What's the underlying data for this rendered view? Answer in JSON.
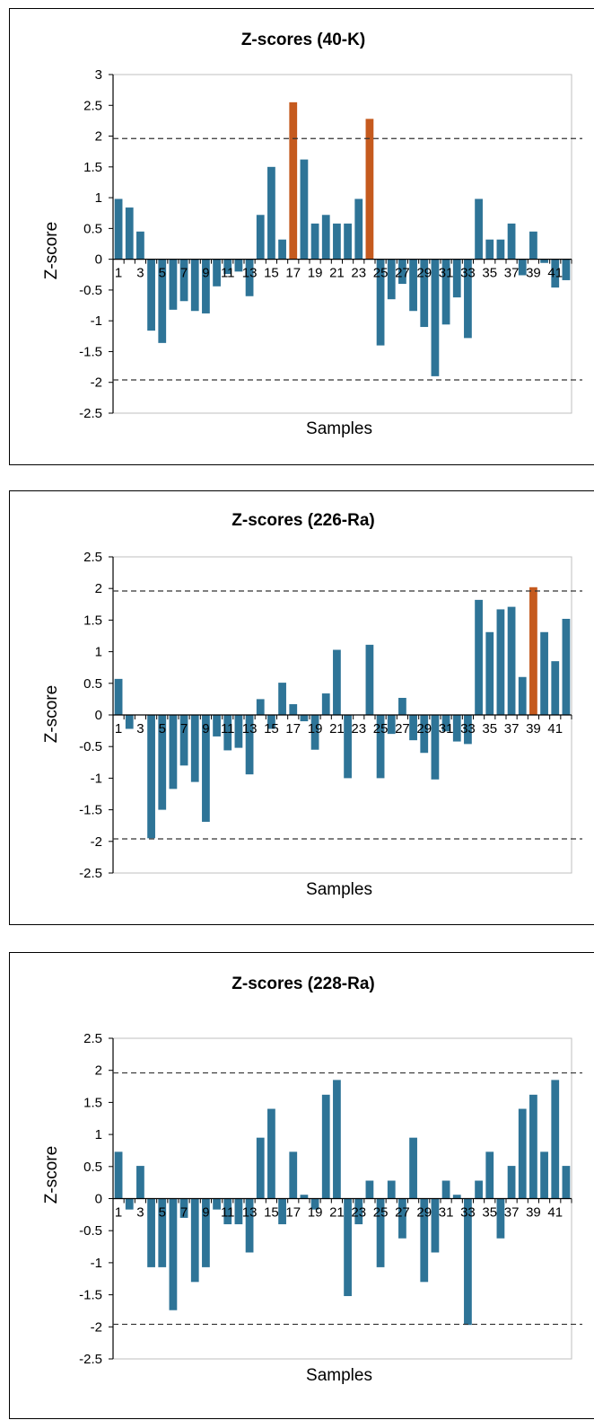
{
  "colors": {
    "bar": "#2e7497",
    "highlight": "#c55a1e",
    "threshold": "#333333",
    "frame": "#bfbfbf"
  },
  "chart_data": [
    {
      "type": "bar",
      "title": "Z-scores (40-K)",
      "xlabel": "Samples",
      "ylabel": "Z-score",
      "ylim": [
        -2.5,
        3
      ],
      "yticks": [
        "3",
        "2.5",
        "2",
        "1.5",
        "1",
        "0.5",
        "0",
        "-0.5",
        "-1",
        "-1.5",
        "-2",
        "-2.5"
      ],
      "xticks": [
        "1",
        "3",
        "5",
        "7",
        "9",
        "11",
        "13",
        "15",
        "17",
        "19",
        "21",
        "23",
        "25",
        "27",
        "29",
        "31",
        "33",
        "35",
        "37",
        "39",
        "41"
      ],
      "thresholds": [
        1.96,
        -1.96
      ],
      "categories": [
        1,
        2,
        3,
        4,
        5,
        6,
        7,
        8,
        9,
        10,
        11,
        12,
        13,
        14,
        15,
        16,
        17,
        18,
        19,
        20,
        21,
        22,
        23,
        24,
        25,
        26,
        27,
        28,
        29,
        30,
        31,
        32,
        33,
        34,
        35,
        36,
        37,
        38,
        39,
        40,
        41,
        42
      ],
      "values": [
        0.98,
        0.84,
        0.45,
        -1.16,
        -1.36,
        -0.82,
        -0.68,
        -0.84,
        -0.88,
        -0.44,
        -0.24,
        -0.2,
        -0.6,
        0.72,
        1.5,
        0.32,
        2.55,
        1.62,
        0.58,
        0.72,
        0.58,
        0.58,
        0.98,
        2.28,
        -1.4,
        -0.65,
        -0.4,
        -0.84,
        -1.1,
        -1.9,
        -1.06,
        -0.62,
        -1.28,
        0.98,
        0.32,
        0.32,
        0.58,
        -0.26,
        0.45,
        -0.06,
        -0.46,
        -0.34
      ],
      "highlight": [
        17,
        24
      ]
    },
    {
      "type": "bar",
      "title": "Z-scores (226-Ra)",
      "xlabel": "Samples",
      "ylabel": "Z-score",
      "ylim": [
        -2.5,
        2.5
      ],
      "yticks": [
        "2.5",
        "2",
        "1.5",
        "1",
        "0.5",
        "0",
        "-0.5",
        "-1",
        "-1.5",
        "-2",
        "-2.5"
      ],
      "xticks": [
        "1",
        "3",
        "5",
        "7",
        "9",
        "11",
        "13",
        "15",
        "17",
        "19",
        "21",
        "23",
        "25",
        "27",
        "29",
        "31",
        "33",
        "35",
        "37",
        "39",
        "41"
      ],
      "thresholds": [
        1.96,
        -1.96
      ],
      "categories": [
        1,
        2,
        3,
        4,
        5,
        6,
        7,
        8,
        9,
        10,
        11,
        12,
        13,
        14,
        15,
        16,
        17,
        18,
        19,
        20,
        21,
        22,
        23,
        24,
        25,
        26,
        27,
        28,
        29,
        30,
        31,
        32,
        33,
        34,
        35,
        36,
        37,
        38,
        39,
        40,
        41,
        42
      ],
      "values": [
        0.57,
        -0.22,
        0.0,
        -1.95,
        -1.5,
        -1.17,
        -0.8,
        -1.06,
        -1.69,
        -0.34,
        -0.56,
        -0.52,
        -0.94,
        0.25,
        -0.22,
        0.51,
        0.17,
        -0.1,
        -0.55,
        0.34,
        1.03,
        -1.0,
        0.0,
        1.11,
        -1.0,
        -0.3,
        0.27,
        -0.4,
        -0.6,
        -1.02,
        -0.26,
        -0.42,
        -0.46,
        1.82,
        1.31,
        1.67,
        1.71,
        0.6,
        2.02,
        1.31,
        0.85,
        1.52
      ],
      "highlight": [
        39
      ]
    },
    {
      "type": "bar",
      "title": "Z-scores (228-Ra)",
      "xlabel": "Samples",
      "ylabel": "Z-score",
      "ylim": [
        -2.5,
        2.5
      ],
      "yticks": [
        "2.5",
        "2",
        "1.5",
        "1",
        "0.5",
        "0",
        "-0.5",
        "-1",
        "-1.5",
        "-2",
        "-2.5"
      ],
      "xticks": [
        "1",
        "3",
        "5",
        "7",
        "9",
        "11",
        "13",
        "15",
        "17",
        "19",
        "21",
        "23",
        "25",
        "27",
        "29",
        "31",
        "33",
        "35",
        "37",
        "39",
        "41"
      ],
      "thresholds": [
        1.96,
        -1.96
      ],
      "categories": [
        1,
        2,
        3,
        4,
        5,
        6,
        7,
        8,
        9,
        10,
        11,
        12,
        13,
        14,
        15,
        16,
        17,
        18,
        19,
        20,
        21,
        22,
        23,
        24,
        25,
        26,
        27,
        28,
        29,
        30,
        31,
        32,
        33,
        34,
        35,
        36,
        37,
        38,
        39,
        40,
        41,
        42
      ],
      "values": [
        0.73,
        -0.17,
        0.51,
        -1.07,
        -1.07,
        -1.74,
        -0.3,
        -1.3,
        -1.07,
        -0.17,
        -0.4,
        -0.4,
        -0.84,
        0.95,
        1.4,
        -0.4,
        0.73,
        0.06,
        -0.17,
        1.62,
        1.85,
        -1.52,
        -0.4,
        0.28,
        -1.07,
        0.28,
        -0.62,
        0.95,
        -1.3,
        -0.84,
        0.28,
        0.06,
        -1.97,
        0.28,
        0.73,
        -0.62,
        0.51,
        1.4,
        1.62,
        0.73,
        1.85,
        0.51
      ],
      "highlight": []
    }
  ]
}
